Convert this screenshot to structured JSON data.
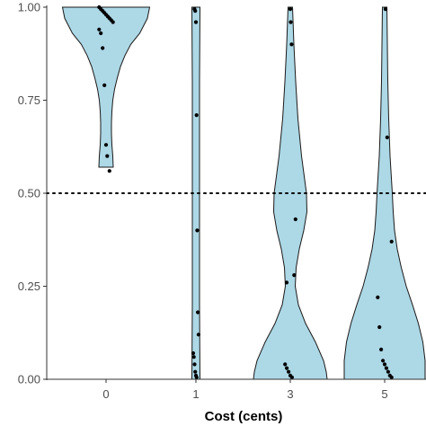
{
  "chart_data": {
    "type": "violin",
    "title": "",
    "xlabel": "Cost (cents)",
    "ylabel": "",
    "categories": [
      "0",
      "1",
      "3",
      "5"
    ],
    "ylim": [
      0,
      1
    ],
    "yticks": [
      "0.00",
      "0.25",
      "0.50",
      "0.75",
      "1.00"
    ],
    "yticks_values": [
      0,
      0.25,
      0.5,
      0.75,
      1.0
    ],
    "reference_line": {
      "y": 0.5,
      "style": "dotted"
    },
    "colors": {
      "violin_fill": "#add8e6",
      "violin_stroke": "#1a1a1a",
      "point": "#000000",
      "axis": "#333333"
    },
    "violins": [
      {
        "category": "0",
        "profile": [
          [
            1.0,
            0.97
          ],
          [
            0.97,
            0.92
          ],
          [
            0.93,
            0.75
          ],
          [
            0.9,
            0.55
          ],
          [
            0.87,
            0.42
          ],
          [
            0.84,
            0.32
          ],
          [
            0.81,
            0.25
          ],
          [
            0.78,
            0.19
          ],
          [
            0.75,
            0.15
          ],
          [
            0.72,
            0.13
          ],
          [
            0.69,
            0.12
          ],
          [
            0.66,
            0.12
          ],
          [
            0.63,
            0.13
          ],
          [
            0.6,
            0.15
          ],
          [
            0.57,
            0.16
          ]
        ],
        "points": [
          1.0,
          0.995,
          0.99,
          0.985,
          0.98,
          0.975,
          0.97,
          0.965,
          0.96,
          0.94,
          0.93,
          0.89,
          0.79,
          0.63,
          0.6,
          0.56
        ]
      },
      {
        "category": "1",
        "profile": [
          [
            1.0,
            0.09
          ],
          [
            0.8,
            0.08
          ],
          [
            0.6,
            0.08
          ],
          [
            0.4,
            0.08
          ],
          [
            0.2,
            0.08
          ],
          [
            0.0,
            0.09
          ]
        ],
        "points": [
          0.995,
          0.99,
          0.96,
          0.71,
          0.4,
          0.18,
          0.12,
          0.07,
          0.06,
          0.04,
          0.02,
          0.01,
          0.005
        ]
      },
      {
        "category": "3",
        "profile": [
          [
            1.0,
            0.05
          ],
          [
            0.9,
            0.08
          ],
          [
            0.8,
            0.12
          ],
          [
            0.7,
            0.17
          ],
          [
            0.6,
            0.25
          ],
          [
            0.5,
            0.36
          ],
          [
            0.45,
            0.37
          ],
          [
            0.4,
            0.3
          ],
          [
            0.35,
            0.2
          ],
          [
            0.3,
            0.13
          ],
          [
            0.25,
            0.11
          ],
          [
            0.2,
            0.18
          ],
          [
            0.15,
            0.34
          ],
          [
            0.1,
            0.56
          ],
          [
            0.05,
            0.74
          ],
          [
            0.02,
            0.8
          ],
          [
            0.0,
            0.82
          ]
        ],
        "points": [
          0.995,
          0.96,
          0.9,
          0.43,
          0.28,
          0.26,
          0.04,
          0.03,
          0.02,
          0.01,
          0.005
        ]
      },
      {
        "category": "5",
        "profile": [
          [
            1.0,
            0.05
          ],
          [
            0.9,
            0.06
          ],
          [
            0.8,
            0.07
          ],
          [
            0.7,
            0.09
          ],
          [
            0.6,
            0.12
          ],
          [
            0.5,
            0.17
          ],
          [
            0.45,
            0.19
          ],
          [
            0.4,
            0.22
          ],
          [
            0.35,
            0.28
          ],
          [
            0.3,
            0.37
          ],
          [
            0.25,
            0.48
          ],
          [
            0.2,
            0.62
          ],
          [
            0.15,
            0.75
          ],
          [
            0.1,
            0.85
          ],
          [
            0.05,
            0.9
          ],
          [
            0.0,
            0.9
          ]
        ],
        "points": [
          0.995,
          0.65,
          0.37,
          0.22,
          0.14,
          0.08,
          0.05,
          0.04,
          0.03,
          0.02,
          0.01,
          0.005
        ]
      }
    ]
  }
}
